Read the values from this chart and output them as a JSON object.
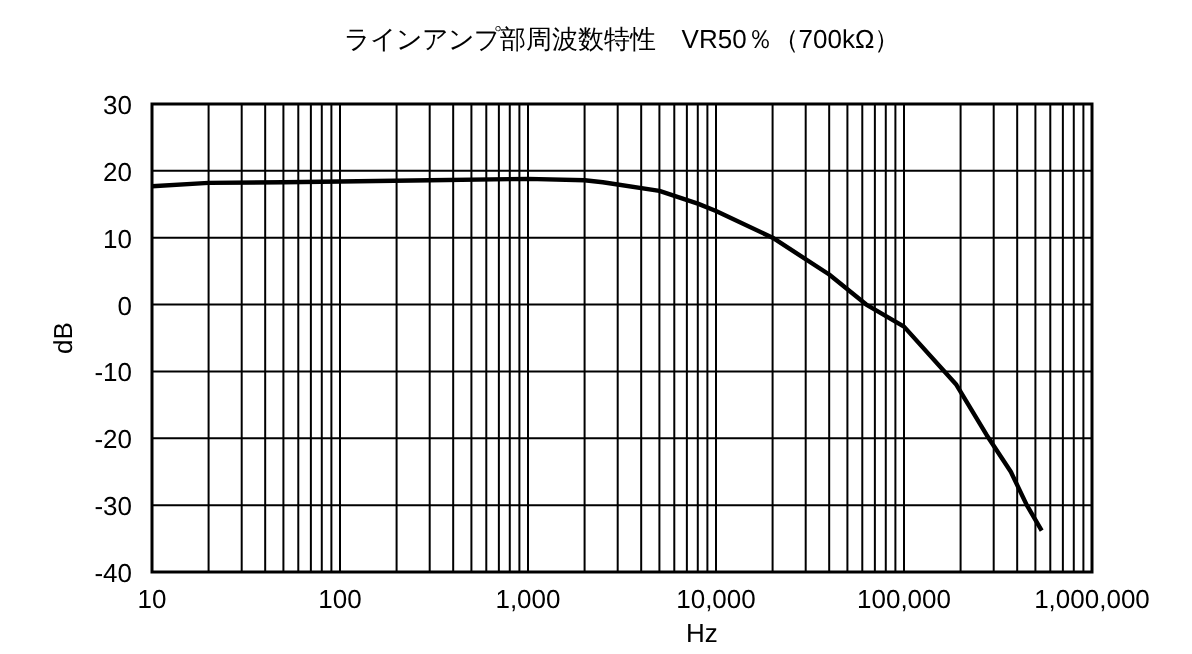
{
  "chart_data": {
    "type": "line",
    "title": "ラインアンプ部周波数特性　VR50％（700kΩ）",
    "xlabel": "Hz",
    "ylabel": "dB",
    "log": "x",
    "grid": true,
    "marker": "none",
    "line_style": "solid",
    "xlim": [
      10,
      1000000
    ],
    "ylim": [
      -40,
      30
    ],
    "yticks": [
      -40,
      -30,
      -20,
      -10,
      0,
      10,
      20,
      30
    ],
    "xticks": [
      {
        "value": 10,
        "label": "10"
      },
      {
        "value": 20,
        "label": null
      },
      {
        "value": 30,
        "label": null
      },
      {
        "value": 40,
        "label": null
      },
      {
        "value": 50,
        "label": null
      },
      {
        "value": 60,
        "label": null
      },
      {
        "value": 70,
        "label": null
      },
      {
        "value": 80,
        "label": null
      },
      {
        "value": 90,
        "label": null
      },
      {
        "value": 100,
        "label": "100"
      },
      {
        "value": 200,
        "label": null
      },
      {
        "value": 300,
        "label": null
      },
      {
        "value": 400,
        "label": null
      },
      {
        "value": 500,
        "label": null
      },
      {
        "value": 600,
        "label": null
      },
      {
        "value": 700,
        "label": null
      },
      {
        "value": 800,
        "label": null
      },
      {
        "value": 900,
        "label": null
      },
      {
        "value": 1000,
        "label": "1,000"
      },
      {
        "value": 2000,
        "label": null
      },
      {
        "value": 3000,
        "label": null
      },
      {
        "value": 4000,
        "label": null
      },
      {
        "value": 5000,
        "label": null
      },
      {
        "value": 6000,
        "label": null
      },
      {
        "value": 7000,
        "label": null
      },
      {
        "value": 8000,
        "label": null
      },
      {
        "value": 9000,
        "label": null
      },
      {
        "value": 10000,
        "label": "10,000"
      },
      {
        "value": 20000,
        "label": null
      },
      {
        "value": 30000,
        "label": null
      },
      {
        "value": 40000,
        "label": null
      },
      {
        "value": 50000,
        "label": null
      },
      {
        "value": 60000,
        "label": null
      },
      {
        "value": 70000,
        "label": null
      },
      {
        "value": 80000,
        "label": null
      },
      {
        "value": 90000,
        "label": null
      },
      {
        "value": 100000,
        "label": "100,000"
      },
      {
        "value": 200000,
        "label": null
      },
      {
        "value": 300000,
        "label": null
      },
      {
        "value": 400000,
        "label": null
      },
      {
        "value": 500000,
        "label": null
      },
      {
        "value": 600000,
        "label": null
      },
      {
        "value": 700000,
        "label": null
      },
      {
        "value": 800000,
        "label": null
      },
      {
        "value": 900000,
        "label": null
      },
      {
        "value": 1000000,
        "label": "1,000,000"
      }
    ],
    "series": [
      {
        "color": "#000000",
        "x": [
          10,
          20,
          50,
          100,
          300,
          1000,
          2000,
          2500,
          5000,
          8000,
          10000,
          20000,
          40000,
          63000,
          100000,
          190000,
          275000,
          370000,
          450000,
          540000
        ],
        "values": [
          17.7,
          18.2,
          18.3,
          18.4,
          18.6,
          18.8,
          18.6,
          18.3,
          17,
          15.1,
          14,
          10,
          4.5,
          0,
          -3.3,
          -12,
          -19.5,
          -25,
          -30,
          -33.8
        ]
      }
    ]
  }
}
